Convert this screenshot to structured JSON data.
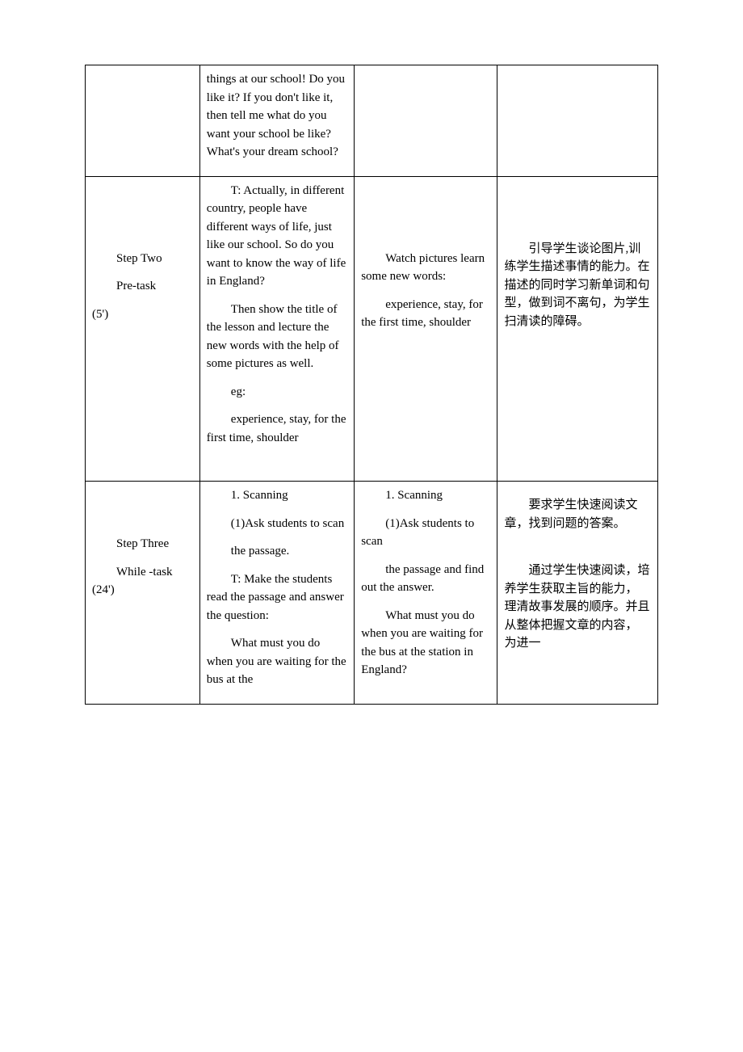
{
  "table": {
    "border_color": "#000000",
    "background_color": "#ffffff",
    "font_size": 15,
    "columns_width_pct": [
      20,
      27,
      25,
      28
    ],
    "rows": [
      {
        "col1": "",
        "col2_paragraphs": [
          "things at our school! Do you like it? If you don't like it, then tell me what do you want your school be like? What's your dream school?"
        ],
        "col3": "",
        "col4": ""
      },
      {
        "col1_paragraphs": [
          "Step Two",
          "Pre-task",
          "(5')"
        ],
        "col2_paragraphs": [
          "T: Actually, in different country, people have different ways of life, just like our school. So do you want to know the way of life in England?",
          "Then show the title of the lesson and lecture the new words with the help of some pictures as well.",
          "eg:",
          " experience, stay, for the first time, shoulder"
        ],
        "col3_paragraphs": [
          "Watch pictures learn some new words:",
          "experience, stay, for the first time, shoulder"
        ],
        "col4_paragraphs": [
          "引导学生谈论图片,训练学生描述事情的能力。在描述的同时学习新单词和句型，做到词不离句，为学生扫清读的障碍。"
        ]
      },
      {
        "col1_paragraphs": [
          "Step Three",
          "While -task (24')"
        ],
        "col2_paragraphs": [
          "1. Scanning",
          "(1)Ask students to scan",
          "the passage.",
          "T: Make the students read the passage and answer the question:",
          "What must you do when you are waiting for the bus at the"
        ],
        "col3_paragraphs": [
          "1. Scanning",
          "(1)Ask students to scan",
          "the passage and find out the answer.",
          "What must you do when you are waiting for the bus at the station in England?"
        ],
        "col4_paragraphs": [
          "要求学生快速阅读文章，找到问题的答案。",
          "",
          "通过学生快速阅读，培养学生获取主旨的能力， 理清故事发展的顺序。并且从整体把握文章的内容， 为进一"
        ]
      }
    ]
  }
}
